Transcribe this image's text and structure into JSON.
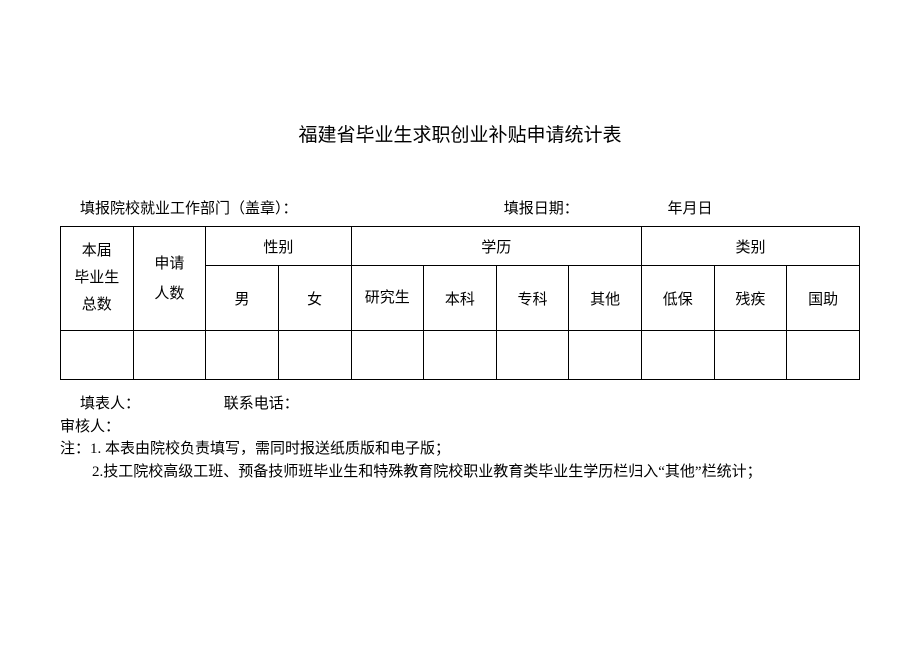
{
  "title": "福建省毕业生求职创业补贴申请统计表",
  "header": {
    "dept_label": "填报院校就业工作部门（盖章）：",
    "date_label": "填报日期：",
    "date_value": "年月日"
  },
  "table": {
    "col_graduate": "本届\n毕业生\n总数",
    "col_apply": "申请\n人数",
    "group_gender": "性别",
    "group_edu": "学历",
    "group_category": "类别",
    "male": "男",
    "female": "女",
    "grad_student": "研究生",
    "bachelor": "本科",
    "junior": "专科",
    "other": "其他",
    "low_income": "低保",
    "disability": "残疾",
    "national_aid": "国助",
    "data_row": [
      "",
      "",
      "",
      "",
      "",
      "",
      "",
      "",
      "",
      "",
      ""
    ]
  },
  "footer": {
    "filler_label": "填表人：",
    "tel_label": "联系电话：",
    "reviewer_label": "审核人：",
    "note_prefix": "注：",
    "note1": "1. 本表由院校负责填写，需同时报送纸质版和电子版；",
    "note2": "2.技工院校高级工班、预备技师班毕业生和特殊教育院校职业教育类毕业生学历栏归入“其他”栏统计；"
  },
  "style": {
    "background_color": "#ffffff",
    "border_color": "#000000",
    "font_family": "SimSun",
    "title_fontsize": 19,
    "body_fontsize": 15
  }
}
